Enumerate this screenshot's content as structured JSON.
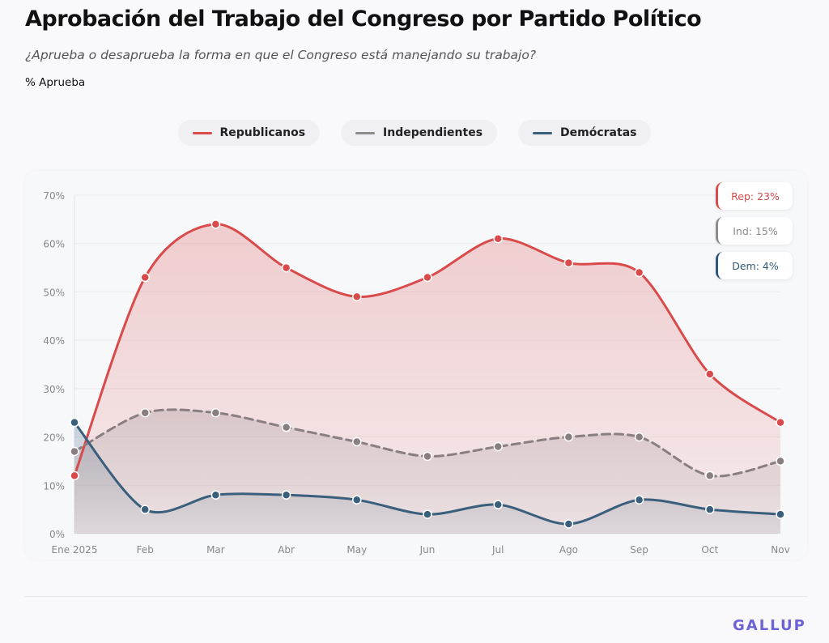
{
  "header": {
    "title": "Aprobación del Trabajo del Congreso por Partido Político",
    "subtitle": "¿Aprueba o desaprueba la forma en que el Congreso está manejando su trabajo?",
    "unit": "% Aprueba"
  },
  "legend": [
    {
      "label": "Republicanos",
      "color": "#d94a4a"
    },
    {
      "label": "Independientes",
      "color": "#8c8c8c"
    },
    {
      "label": "Demócratas",
      "color": "#3a5f7d"
    }
  ],
  "badges": [
    {
      "label": "Rep: 23%",
      "color": "#d94a4a"
    },
    {
      "label": "Ind: 15%",
      "color": "#8c8c8c"
    },
    {
      "label": "Dem: 4%",
      "color": "#2f5878"
    }
  ],
  "logo": "GALLUP",
  "chart_data": {
    "type": "line",
    "categories": [
      "Ene 2025",
      "Feb",
      "Mar",
      "Abr",
      "May",
      "Jun",
      "Jul",
      "Ago",
      "Sep",
      "Oct",
      "Nov"
    ],
    "ylim": [
      0,
      70
    ],
    "yticks": [
      "0%",
      "10%",
      "20%",
      "30%",
      "40%",
      "50%",
      "60%",
      "70%"
    ],
    "grid": true,
    "legend_position": "top",
    "series": [
      {
        "name": "Republicanos",
        "color": "#d94a4a",
        "style": "solid",
        "fill": true,
        "values": [
          12,
          53,
          64,
          55,
          49,
          53,
          61,
          56,
          54,
          33,
          23
        ]
      },
      {
        "name": "Independientes",
        "color": "#8a7f80",
        "style": "dashed",
        "fill": true,
        "values": [
          17,
          25,
          25,
          22,
          19,
          16,
          18,
          20,
          20,
          12,
          15
        ]
      },
      {
        "name": "Demócratas",
        "color": "#3a5f7d",
        "style": "solid",
        "fill": true,
        "values": [
          23,
          5,
          8,
          8,
          7,
          4,
          6,
          2,
          7,
          5,
          4
        ]
      }
    ]
  }
}
